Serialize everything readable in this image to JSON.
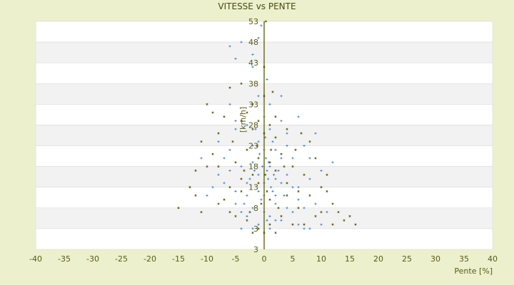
{
  "chart_data": {
    "type": "scatter",
    "title": "VITESSE vs PENTE",
    "xlabel": "Pente [%]",
    "ylabel": "[km/h]",
    "xlim": [
      -40,
      40
    ],
    "ylim": [
      -2,
      53
    ],
    "x_ticks": [
      "-40",
      "-35",
      "-30",
      "-25",
      "-20",
      "-15",
      "-10",
      "-5",
      "0",
      "5",
      "10",
      "15",
      "20",
      "25",
      "30",
      "35",
      "40"
    ],
    "y_ticks": [
      "53",
      "48",
      "43",
      "38",
      "33",
      "28",
      "23",
      "18",
      "13",
      "8",
      "3"
    ],
    "y_bottom_label": "3",
    "grid": true,
    "legend": "none",
    "colors": {
      "series_a": "#3a86d6",
      "series_b": "#5c5c08",
      "axis": "#5a5a00",
      "background": "#ecf0cc",
      "band": "#f2f2f2"
    },
    "series": [
      {
        "marker": "plus",
        "points": [
          [
            0.5,
            17
          ],
          [
            1,
            18
          ],
          [
            -1,
            16
          ],
          [
            2,
            15
          ],
          [
            -2,
            19
          ],
          [
            0,
            22
          ],
          [
            1.5,
            12
          ],
          [
            -0.5,
            10
          ],
          [
            3,
            20
          ],
          [
            -3,
            14
          ],
          [
            4,
            16
          ],
          [
            -4,
            18
          ],
          [
            0.2,
            25
          ],
          [
            1,
            27
          ],
          [
            -1,
            24
          ],
          [
            2,
            9
          ],
          [
            -2,
            8
          ],
          [
            5,
            13
          ],
          [
            -5,
            12
          ],
          [
            6,
            10
          ],
          [
            -6,
            17
          ],
          [
            7,
            8
          ],
          [
            -7,
            20
          ],
          [
            8,
            15
          ],
          [
            -8,
            16
          ],
          [
            0.5,
            5
          ],
          [
            1,
            3
          ],
          [
            -1,
            4
          ],
          [
            3,
            5
          ],
          [
            -3,
            6
          ],
          [
            10,
            4
          ],
          [
            9,
            9
          ],
          [
            -9,
            13
          ],
          [
            12,
            19
          ],
          [
            -10,
            11
          ],
          [
            0,
            30
          ],
          [
            1,
            33
          ],
          [
            -1,
            35
          ],
          [
            -2,
            42
          ],
          [
            -5,
            44
          ],
          [
            -4,
            48
          ],
          [
            -6,
            47
          ],
          [
            -1,
            49
          ],
          [
            -5,
            29
          ],
          [
            3,
            35
          ],
          [
            6,
            30
          ],
          [
            4,
            26
          ],
          [
            -3,
            28
          ],
          [
            2,
            22
          ],
          [
            -2,
            23
          ],
          [
            0,
            14
          ],
          [
            0.8,
            19
          ],
          [
            -0.8,
            21
          ],
          [
            1.2,
            13
          ],
          [
            2.5,
            17
          ],
          [
            -2.5,
            15
          ],
          [
            3.5,
            11
          ],
          [
            -3.5,
            9
          ],
          [
            0,
            7
          ],
          [
            1,
            6
          ],
          [
            5,
            7
          ],
          [
            -4,
            7
          ],
          [
            6,
            4
          ],
          [
            7,
            3
          ],
          [
            8,
            3
          ],
          [
            -6,
            22
          ],
          [
            -7,
            14
          ],
          [
            4,
            23
          ],
          [
            5,
            20
          ],
          [
            -1,
            12
          ],
          [
            2,
            11
          ],
          [
            0.3,
            20
          ],
          [
            -0.3,
            18
          ],
          [
            1.7,
            16
          ],
          [
            -1.7,
            17
          ],
          [
            11,
            7
          ],
          [
            -8,
            24
          ],
          [
            8,
            20
          ],
          [
            -5,
            27
          ],
          [
            3,
            29
          ],
          [
            -0.5,
            52
          ],
          [
            -2,
            45
          ],
          [
            0.5,
            39
          ],
          [
            -6,
            33
          ],
          [
            9,
            26
          ],
          [
            -11,
            20
          ],
          [
            10,
            17
          ],
          [
            7,
            23
          ],
          [
            -3,
            11
          ],
          [
            4,
            8
          ],
          [
            -2,
            3
          ],
          [
            6,
            13
          ],
          [
            1.5,
            24
          ],
          [
            -1.5,
            27
          ],
          [
            0,
            11
          ],
          [
            2,
            5
          ],
          [
            -4,
            3
          ],
          [
            3,
            14
          ],
          [
            -5,
            9
          ],
          [
            0.7,
            15
          ]
        ]
      },
      {
        "marker": "x",
        "points": [
          [
            -15,
            8
          ],
          [
            -12,
            11
          ],
          [
            15,
            6
          ],
          [
            16,
            4
          ],
          [
            13,
            7
          ],
          [
            -10,
            33
          ],
          [
            -9,
            31
          ],
          [
            -11,
            24
          ],
          [
            -8,
            26
          ],
          [
            10,
            13
          ],
          [
            11,
            12
          ],
          [
            12,
            9
          ],
          [
            -6,
            37
          ],
          [
            -4,
            38
          ],
          [
            0.3,
            53
          ],
          [
            0,
            42
          ],
          [
            -1,
            20
          ],
          [
            1,
            19
          ],
          [
            2,
            17
          ],
          [
            -2,
            16
          ],
          [
            3,
            21
          ],
          [
            -3,
            22
          ],
          [
            4,
            14
          ],
          [
            -4,
            15
          ],
          [
            5,
            18
          ],
          [
            -5,
            19
          ],
          [
            6,
            12
          ],
          [
            -6,
            13
          ],
          [
            7,
            16
          ],
          [
            -7,
            10
          ],
          [
            8,
            11
          ],
          [
            -8,
            18
          ],
          [
            9,
            6
          ],
          [
            -9,
            21
          ],
          [
            0,
            26
          ],
          [
            1,
            28
          ],
          [
            -1,
            29
          ],
          [
            2,
            25
          ],
          [
            -2,
            27
          ],
          [
            0.5,
            12
          ],
          [
            -0.5,
            9
          ],
          [
            1,
            4
          ],
          [
            -1,
            3
          ],
          [
            3,
            6
          ],
          [
            -3,
            5
          ],
          [
            5,
            4
          ],
          [
            -5,
            6
          ],
          [
            6,
            8
          ],
          [
            -6,
            7
          ],
          [
            4,
            27
          ],
          [
            -4,
            29
          ],
          [
            2,
            30
          ],
          [
            -2,
            33
          ],
          [
            8,
            24
          ],
          [
            -7,
            30
          ],
          [
            0,
            35
          ],
          [
            1.5,
            36
          ],
          [
            -3,
            31
          ],
          [
            10,
            7
          ],
          [
            14,
            5
          ],
          [
            -13,
            13
          ],
          [
            -10,
            18
          ],
          [
            11,
            16
          ],
          [
            9,
            20
          ],
          [
            -12,
            17
          ],
          [
            7,
            4
          ],
          [
            -8,
            9
          ],
          [
            4,
            11
          ],
          [
            -4,
            12
          ],
          [
            2.5,
            8
          ],
          [
            -2.5,
            7
          ],
          [
            0.2,
            16
          ],
          [
            1.2,
            22
          ],
          [
            -1.2,
            23
          ],
          [
            3.5,
            18
          ],
          [
            -3.5,
            17
          ],
          [
            5.5,
            22
          ],
          [
            -5.5,
            24
          ],
          [
            6.5,
            26
          ],
          [
            0,
            2
          ],
          [
            2,
            2
          ],
          [
            -2,
            2
          ],
          [
            12,
            4
          ],
          [
            -11,
            7
          ],
          [
            1,
            10
          ],
          [
            -1,
            14
          ]
        ]
      }
    ]
  }
}
